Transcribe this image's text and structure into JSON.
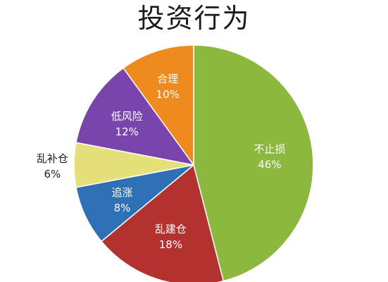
{
  "chart_data": {
    "type": "pie",
    "title": "投资行为",
    "slices": [
      {
        "label": "不止损",
        "value": 46,
        "value_text": "46%",
        "color": "#8cb840"
      },
      {
        "label": "乱建仓",
        "value": 18,
        "value_text": "18%",
        "color": "#b3312e"
      },
      {
        "label": "追涨",
        "value": 8,
        "value_text": "8%",
        "color": "#2f6fb5"
      },
      {
        "label": "乱补仓",
        "value": 6,
        "value_text": "6%",
        "color": "#e6e07a"
      },
      {
        "label": "低风险",
        "value": 12,
        "value_text": "12%",
        "color": "#7a44ad"
      },
      {
        "label": "合理",
        "value": 10,
        "value_text": "10%",
        "color": "#ef8a1f"
      }
    ]
  }
}
